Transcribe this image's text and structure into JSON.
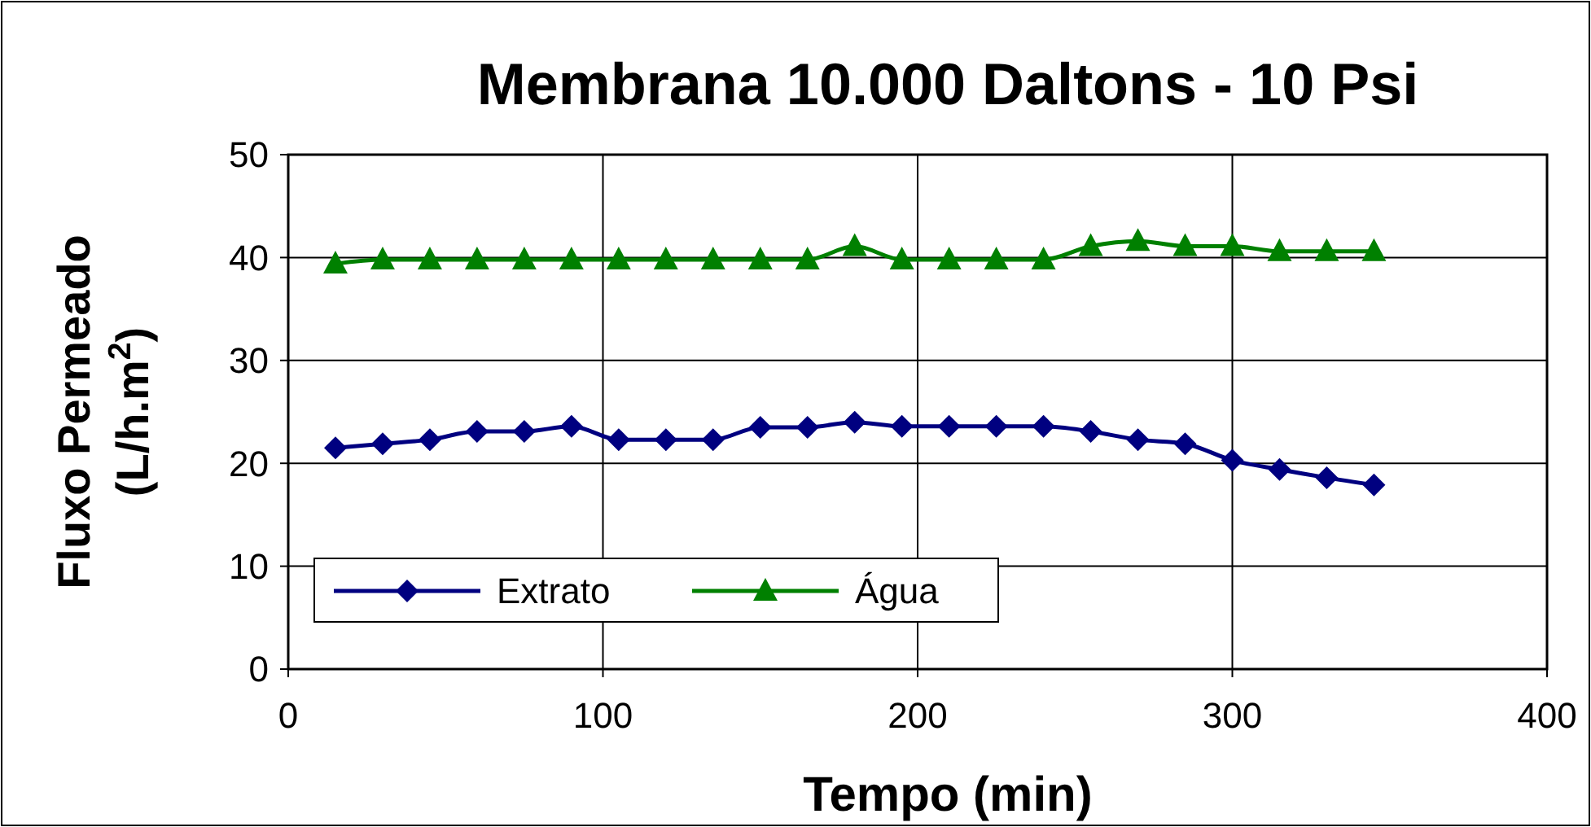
{
  "chart_data": {
    "type": "line",
    "title": "Membrana 10.000 Daltons - 10 Psi",
    "xlabel": "Tempo (min)",
    "ylabel": "Fluxo Permeado (L/h.m$^{2}$)",
    "x": [
      15,
      30,
      45,
      60,
      75,
      90,
      105,
      120,
      135,
      150,
      165,
      180,
      195,
      210,
      225,
      240,
      255,
      270,
      285,
      300,
      315,
      330,
      345
    ],
    "series": [
      {
        "name": "Extrato",
        "color": "#000080",
        "marker": "diamond",
        "values": [
          21.5,
          21.9,
          22.3,
          23.1,
          23.1,
          23.6,
          22.3,
          22.3,
          22.3,
          23.5,
          23.5,
          24,
          23.6,
          23.6,
          23.6,
          23.6,
          23.1,
          22.3,
          21.9,
          20.3,
          19.4,
          18.6,
          17.9
        ]
      },
      {
        "name": "Água",
        "color": "#008000",
        "marker": "triangle",
        "values": [
          39.4,
          39.8,
          39.8,
          39.8,
          39.8,
          39.8,
          39.8,
          39.8,
          39.8,
          39.8,
          39.8,
          41.1,
          39.8,
          39.8,
          39.8,
          39.8,
          41.1,
          41.6,
          41.1,
          41.1,
          40.6,
          40.6,
          40.6
        ]
      }
    ],
    "xlim": [
      0,
      400
    ],
    "xticks": [
      0,
      100,
      200,
      300,
      400
    ],
    "ylim": [
      0,
      50
    ],
    "yticks": [
      0,
      10,
      20,
      30,
      40,
      50
    ],
    "grid": true,
    "legend": "bottom left"
  }
}
